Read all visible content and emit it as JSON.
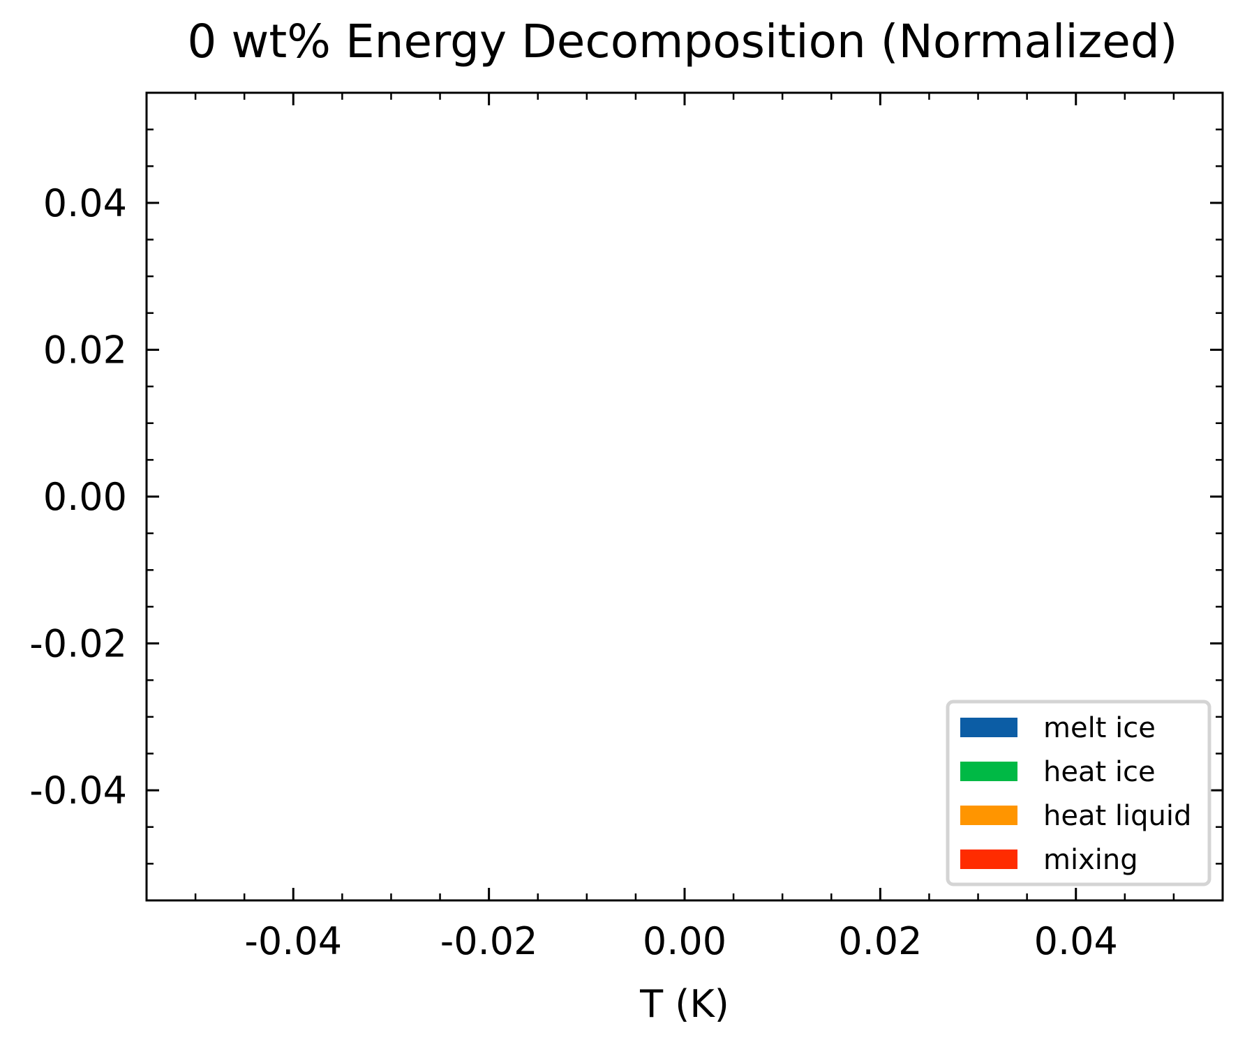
{
  "chart_data": {
    "type": "area",
    "title": "0 wt% Energy Decomposition (Normalized)",
    "xlabel": "T (K)",
    "ylabel": "",
    "xlim": [
      -0.055,
      0.055
    ],
    "ylim": [
      -0.055,
      0.055
    ],
    "x_ticks": [
      -0.04,
      -0.02,
      0.0,
      0.02,
      0.04
    ],
    "x_tick_labels": [
      "-0.04",
      "-0.02",
      "0.00",
      "0.02",
      "0.04"
    ],
    "y_ticks": [
      -0.04,
      -0.02,
      0.0,
      0.02,
      0.04
    ],
    "y_tick_labels": [
      "-0.04",
      "-0.02",
      "0.00",
      "0.02",
      "0.04"
    ],
    "minor_tick_step": 0.005,
    "grid": false,
    "legend_position": "lower-right",
    "series": [
      {
        "name": "melt ice",
        "color": "#0C5DA5",
        "x": [],
        "values": []
      },
      {
        "name": "heat ice",
        "color": "#00B945",
        "x": [],
        "values": []
      },
      {
        "name": "heat liquid",
        "color": "#FF9500",
        "x": [],
        "values": []
      },
      {
        "name": "mixing",
        "color": "#FF2C00",
        "x": [],
        "values": []
      }
    ]
  }
}
